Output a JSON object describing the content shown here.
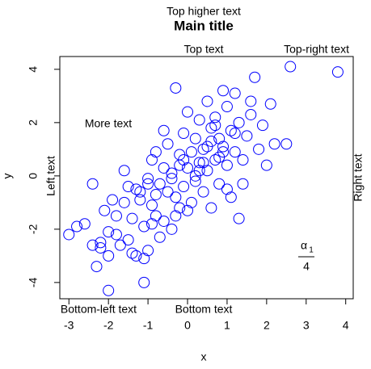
{
  "chart_data": {
    "type": "scatter",
    "title": "Main title",
    "subtitle": "Top higher text",
    "x_label": "x",
    "y_label": "y",
    "annotations": {
      "top": "Top text",
      "top_right": "Top-right text",
      "more": "More text",
      "left": "Left text",
      "right": "Right text",
      "bottom_left": "Bottom-left text",
      "bottom": "Bottom text",
      "fraction": {
        "numerator": "α",
        "subscript": "1",
        "denominator": "4"
      }
    },
    "xlim": [
      -3.23,
      4.19
    ],
    "ylim": [
      -4.61,
      4.48
    ],
    "xticks": [
      -3,
      -2,
      -1,
      0,
      1,
      2,
      3,
      4
    ],
    "yticks": [
      -4,
      -2,
      0,
      2,
      4
    ],
    "grid": false,
    "series": [
      {
        "color": "#0000ff",
        "x": [
          -3.0,
          -2.8,
          -2.6,
          -2.4,
          -2.3,
          -2.2,
          -2.1,
          -2.0,
          -2.0,
          -1.9,
          -1.8,
          -1.7,
          -1.6,
          -1.5,
          -1.5,
          -1.4,
          -1.3,
          -1.2,
          -1.1,
          -1.1,
          -1.0,
          -1.0,
          -0.9,
          -0.9,
          -0.8,
          -0.8,
          -0.7,
          -0.7,
          -0.6,
          -0.6,
          -0.5,
          -0.5,
          -0.4,
          -0.4,
          -0.3,
          -0.3,
          -0.2,
          -0.2,
          -0.1,
          -0.1,
          0.0,
          0.0,
          0.1,
          0.1,
          0.2,
          0.2,
          0.3,
          0.3,
          0.4,
          0.4,
          0.5,
          0.5,
          0.6,
          0.6,
          0.7,
          0.7,
          0.8,
          0.8,
          0.9,
          0.9,
          1.0,
          1.0,
          1.1,
          1.1,
          1.2,
          1.2,
          1.3,
          1.3,
          1.4,
          1.5,
          1.6,
          1.7,
          1.8,
          1.9,
          2.0,
          2.2,
          2.5,
          2.6,
          3.8,
          -1.2,
          -0.9,
          -0.6,
          -0.3,
          0.2,
          0.5,
          0.8,
          1.0,
          -1.6,
          -1.4,
          -0.2,
          0.4,
          -2.2,
          -1.8,
          1.6,
          1.4,
          -0.8,
          0.0,
          0.6,
          -0.4,
          1.2,
          -2.4,
          -1.0,
          0.3,
          -0.1,
          0.9,
          -1.3,
          2.1,
          -2.0,
          -1.1,
          0.7
        ],
        "y": [
          -2.2,
          -1.9,
          -1.8,
          -0.3,
          -3.4,
          -2.7,
          -1.3,
          -4.3,
          -2.1,
          -0.9,
          -1.5,
          -2.6,
          0.2,
          -2.4,
          -0.4,
          -1.6,
          -3.0,
          -0.6,
          -4.0,
          -1.9,
          -0.3,
          -2.8,
          0.6,
          -1.1,
          -1.5,
          0.9,
          -0.3,
          -2.3,
          0.3,
          -1.7,
          1.2,
          -0.6,
          0.1,
          -2.0,
          3.3,
          -0.8,
          0.8,
          -1.2,
          1.6,
          -0.4,
          2.4,
          0.3,
          0.9,
          -1.0,
          1.4,
          -0.2,
          2.1,
          0.5,
          -0.6,
          1.0,
          2.8,
          0.2,
          1.8,
          -1.2,
          0.6,
          2.2,
          1.4,
          -0.3,
          3.2,
          0.9,
          0.4,
          2.6,
          1.7,
          -0.8,
          0.9,
          3.1,
          2.0,
          -1.6,
          0.6,
          1.5,
          2.3,
          3.7,
          1.0,
          1.9,
          0.4,
          1.2,
          1.2,
          4.1,
          3.9,
          -0.9,
          -1.8,
          1.7,
          -1.5,
          0.0,
          1.1,
          0.7,
          -0.5,
          -1.0,
          -2.9,
          0.4,
          0.5,
          -2.5,
          -2.2,
          2.8,
          -0.3,
          -0.7,
          -1.3,
          1.3,
          -0.1,
          1.6,
          -2.6,
          -0.1,
          0.2,
          0.6,
          1.1,
          -0.5,
          2.7,
          -3.0,
          -3.1,
          1.9
        ]
      }
    ]
  }
}
